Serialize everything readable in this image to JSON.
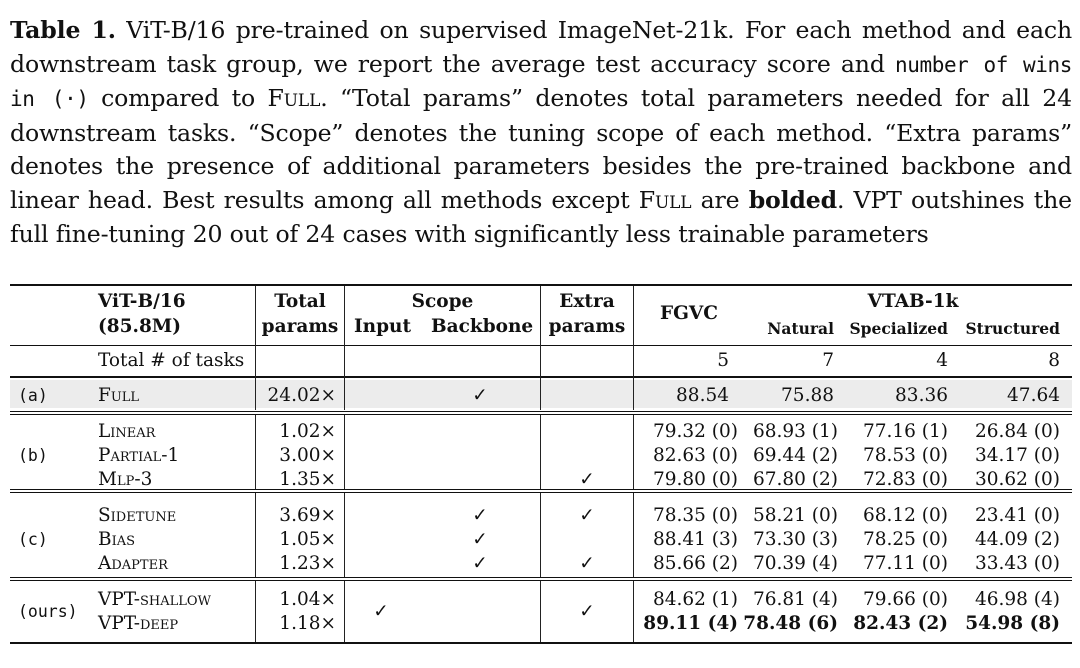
{
  "caption": {
    "label": "Table 1.",
    "part1": " ViT-B/16 pre-trained on supervised ImageNet-21k. For each method and each downstream task group, we report the average test accuracy score and ",
    "mono": "number of wins in (·)",
    "part2": " compared to ",
    "full": "Full",
    "part3": ". “Total params” denotes total parameters needed for all 24 downstream tasks. “Scope” denotes the tuning scope of each method. “Extra params” denotes the presence of additional parameters besides the pre-trained backbone and linear head. Best results among all methods except ",
    "full2": "Full",
    "part4": " are ",
    "bolded": "bolded",
    "part5": ". VPT outshines the full fine-tuning 20 out of 24 cases with significantly less trainable parameters"
  },
  "table": {
    "header": {
      "model": "ViT-B/16",
      "model_size": "(85.8M)",
      "total": "Total",
      "params": "params",
      "scope": "Scope",
      "input": "Input",
      "backbone": "Backbone",
      "extra": "Extra",
      "extra_params": "params",
      "fgvc": "FGVC",
      "vtab": "VTAB-1k",
      "natural": "Natural",
      "specialized": "Specialized",
      "structured": "Structured"
    },
    "tasks_row": {
      "label": "Total # of tasks",
      "fgvc": "5",
      "natural": "7",
      "specialized": "4",
      "structured": "8"
    },
    "check": "✓",
    "groups": {
      "a": "(a)",
      "b": "(b)",
      "c": "(c)",
      "ours": "(ours)"
    },
    "rows": [
      {
        "name": "Full",
        "params": "24.02×",
        "fgvc": "88.54",
        "natural": "75.88",
        "specialized": "83.36",
        "structured": "47.64"
      },
      {
        "name": "Linear",
        "params": "1.02×",
        "fgvc": "79.32 (0)",
        "natural": "68.93 (1)",
        "specialized": "77.16 (1)",
        "structured": "26.84 (0)"
      },
      {
        "name": "Partial-1",
        "params": "3.00×",
        "fgvc": "82.63 (0)",
        "natural": "69.44 (2)",
        "specialized": "78.53 (0)",
        "structured": "34.17 (0)"
      },
      {
        "name": "Mlp-3",
        "params": "1.35×",
        "fgvc": "79.80 (0)",
        "natural": "67.80 (2)",
        "specialized": "72.83 (0)",
        "structured": "30.62 (0)"
      },
      {
        "name": "Sidetune",
        "params": "3.69×",
        "fgvc": "78.35 (0)",
        "natural": "58.21 (0)",
        "specialized": "68.12 (0)",
        "structured": "23.41 (0)"
      },
      {
        "name": "Bias",
        "params": "1.05×",
        "fgvc": "88.41 (3)",
        "natural": "73.30 (3)",
        "specialized": "78.25 (0)",
        "structured": "44.09 (2)"
      },
      {
        "name": "Adapter",
        "params": "1.23×",
        "fgvc": "85.66 (2)",
        "natural": "70.39 (4)",
        "specialized": "77.11 (0)",
        "structured": "33.43 (0)"
      },
      {
        "name": "VPT-shallow",
        "params": "1.04×",
        "fgvc": "84.62 (1)",
        "natural": "76.81 (4)",
        "specialized": "79.66 (0)",
        "structured": "46.98 (4)"
      },
      {
        "name": "VPT-deep",
        "params": "1.18×",
        "fgvc": "89.11 (4)",
        "natural": "78.48 (6)",
        "specialized": "82.43 (2)",
        "structured": "54.98 (8)"
      }
    ]
  }
}
